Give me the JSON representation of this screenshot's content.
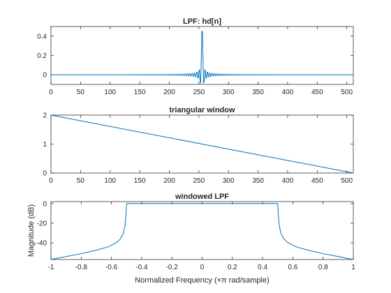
{
  "figure": {
    "background": "#ffffff",
    "line_color": "#0072bd",
    "axis_color": "#262626"
  },
  "chart_data": [
    {
      "type": "line",
      "title": "LPF: hd[n]",
      "xlabel": "",
      "ylabel": "",
      "xlim": [
        0,
        511
      ],
      "ylim": [
        -0.1,
        0.5
      ],
      "xticks": [
        0,
        50,
        100,
        150,
        200,
        250,
        300,
        350,
        400,
        450,
        500
      ],
      "yticks": [
        0,
        0.2,
        0.4
      ],
      "ytick_labels": [
        "0",
        "0.2",
        "0.4"
      ],
      "grid": false,
      "series": [
        {
          "kind": "sinc",
          "length": 512,
          "center": 255.5,
          "cutoff": 0.5,
          "peak_approx": 0.5,
          "description_of_shape": "ideal lowpass impulse response"
        }
      ]
    },
    {
      "type": "line",
      "title": "triangular window",
      "xlabel": "",
      "ylabel": "",
      "xlim": [
        0,
        511
      ],
      "ylim": [
        0,
        2
      ],
      "xticks": [
        0,
        50,
        100,
        150,
        200,
        250,
        300,
        350,
        400,
        450,
        500
      ],
      "yticks": [
        0,
        1,
        2
      ],
      "ytick_labels": [
        "0",
        "1",
        "2"
      ],
      "grid": false,
      "series": [
        {
          "x": [
            0,
            511
          ],
          "y": [
            2,
            0
          ]
        }
      ]
    },
    {
      "type": "line",
      "title": "windowed LPF",
      "xlabel": "Normalized Frequency (×π rad/sample)",
      "ylabel": "Magnitude (dB)",
      "xlim": [
        -1,
        1
      ],
      "ylim": [
        -57,
        2
      ],
      "xticks": [
        -1,
        -0.8,
        -0.6,
        -0.4,
        -0.2,
        0,
        0.2,
        0.4,
        0.6,
        0.8,
        1
      ],
      "xtick_labels": [
        "-1",
        "-0.8",
        "-0.6",
        "-0.4",
        "-0.2",
        "0",
        "0.2",
        "0.4",
        "0.6",
        "0.8",
        "1"
      ],
      "yticks": [
        0,
        -20,
        -40
      ],
      "ytick_labels": [
        "0",
        "-20",
        "-40"
      ],
      "grid": false,
      "series": [
        {
          "x": [
            -1,
            -0.9,
            -0.8,
            -0.7,
            -0.62,
            -0.57,
            -0.54,
            -0.52,
            -0.51,
            -0.503,
            -0.5,
            -0.4,
            -0.2,
            0,
            0.2,
            0.4,
            0.5,
            0.503,
            0.51,
            0.52,
            0.54,
            0.57,
            0.62,
            0.7,
            0.8,
            0.9,
            1
          ],
          "y": [
            -57,
            -54,
            -51,
            -47.5,
            -44,
            -40,
            -36,
            -30,
            -22,
            -10,
            0,
            0,
            0,
            0,
            0,
            0,
            0,
            -10,
            -22,
            -30,
            -36,
            -40,
            -44,
            -47.5,
            -51,
            -54,
            -57
          ]
        }
      ]
    }
  ]
}
